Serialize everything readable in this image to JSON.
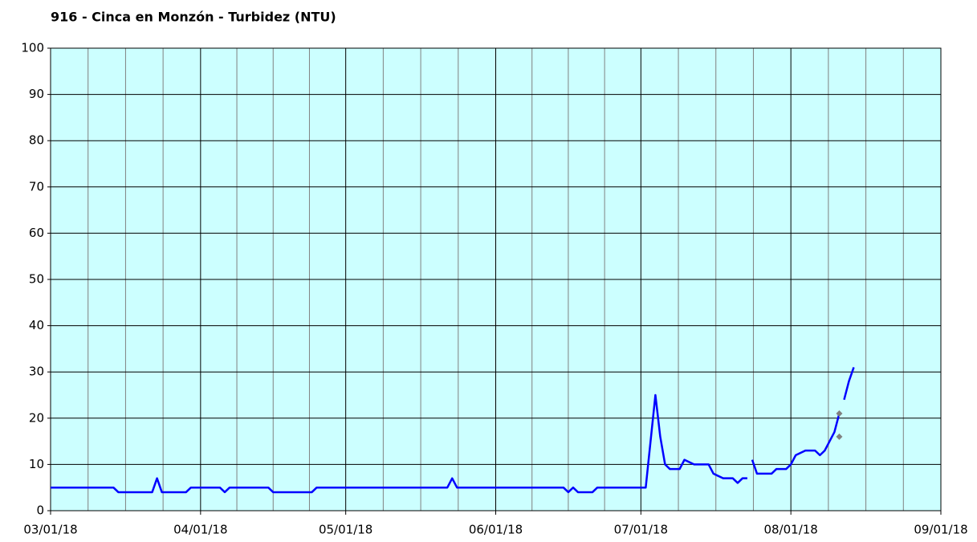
{
  "chart_data": {
    "type": "line",
    "title": "916 - Cinca en Monzón - Turbidez (NTU)",
    "series": [
      {
        "color": "#0000ff",
        "x": [
          "03/01/18",
          "03/14/18",
          "03/15/18",
          "03/22/18",
          "03/23/18",
          "03/24/18",
          "03/29/18",
          "03/30/18",
          "04/05/18",
          "04/06/18",
          "04/07/18",
          "04/15/18",
          "04/16/18",
          "04/24/18",
          "04/25/18",
          "05/22/18",
          "05/23/18",
          "05/24/18",
          "06/15/18",
          "06/16/18",
          "06/17/18",
          "06/18/18",
          "06/21/18",
          "06/22/18",
          "07/02/18",
          "07/03/18",
          "07/04/18",
          "07/05/18",
          "07/06/18",
          "07/07/18",
          "07/09/18",
          "07/10/18",
          "07/12/18",
          "07/15/18",
          "07/16/18",
          "07/18/18",
          "07/20/18",
          "07/21/18",
          "07/22/18",
          "07/23/18",
          "07/23/18",
          "07/24/18",
          "07/25/18",
          "07/28/18",
          "07/29/18",
          "07/31/18",
          "08/01/18",
          "08/02/18",
          "08/04/18",
          "08/06/18",
          "08/07/18",
          "08/08/18",
          "08/09/18",
          "08/10/18",
          "08/11/18",
          "08/11/18",
          "08/12/18",
          "08/13/18",
          "08/14/18"
        ],
        "values": [
          5,
          5,
          4,
          4,
          7,
          4,
          4,
          5,
          5,
          4,
          5,
          5,
          4,
          4,
          5,
          5,
          7,
          5,
          5,
          4,
          5,
          4,
          4,
          5,
          5,
          15,
          25,
          16,
          10,
          9,
          9,
          11,
          10,
          10,
          8,
          7,
          7,
          6,
          7,
          7,
          null,
          11,
          8,
          8,
          9,
          9,
          10,
          12,
          13,
          13,
          12,
          13,
          15,
          17,
          21,
          null,
          24,
          28,
          31
        ]
      },
      {
        "color": "#808080",
        "mode": "markers",
        "x": [
          "08/11/18",
          "08/11/18"
        ],
        "values": [
          21,
          16
        ]
      }
    ],
    "xlim": [
      "03/01/18",
      "09/01/18"
    ],
    "xticks": [
      "03/01/18",
      "04/01/18",
      "05/01/18",
      "06/01/18",
      "07/01/18",
      "08/01/18",
      "09/01/18"
    ],
    "ylim": [
      0,
      100
    ],
    "yticks": [
      0,
      10,
      20,
      30,
      40,
      50,
      60,
      70,
      80,
      90,
      100
    ],
    "grid": true
  }
}
